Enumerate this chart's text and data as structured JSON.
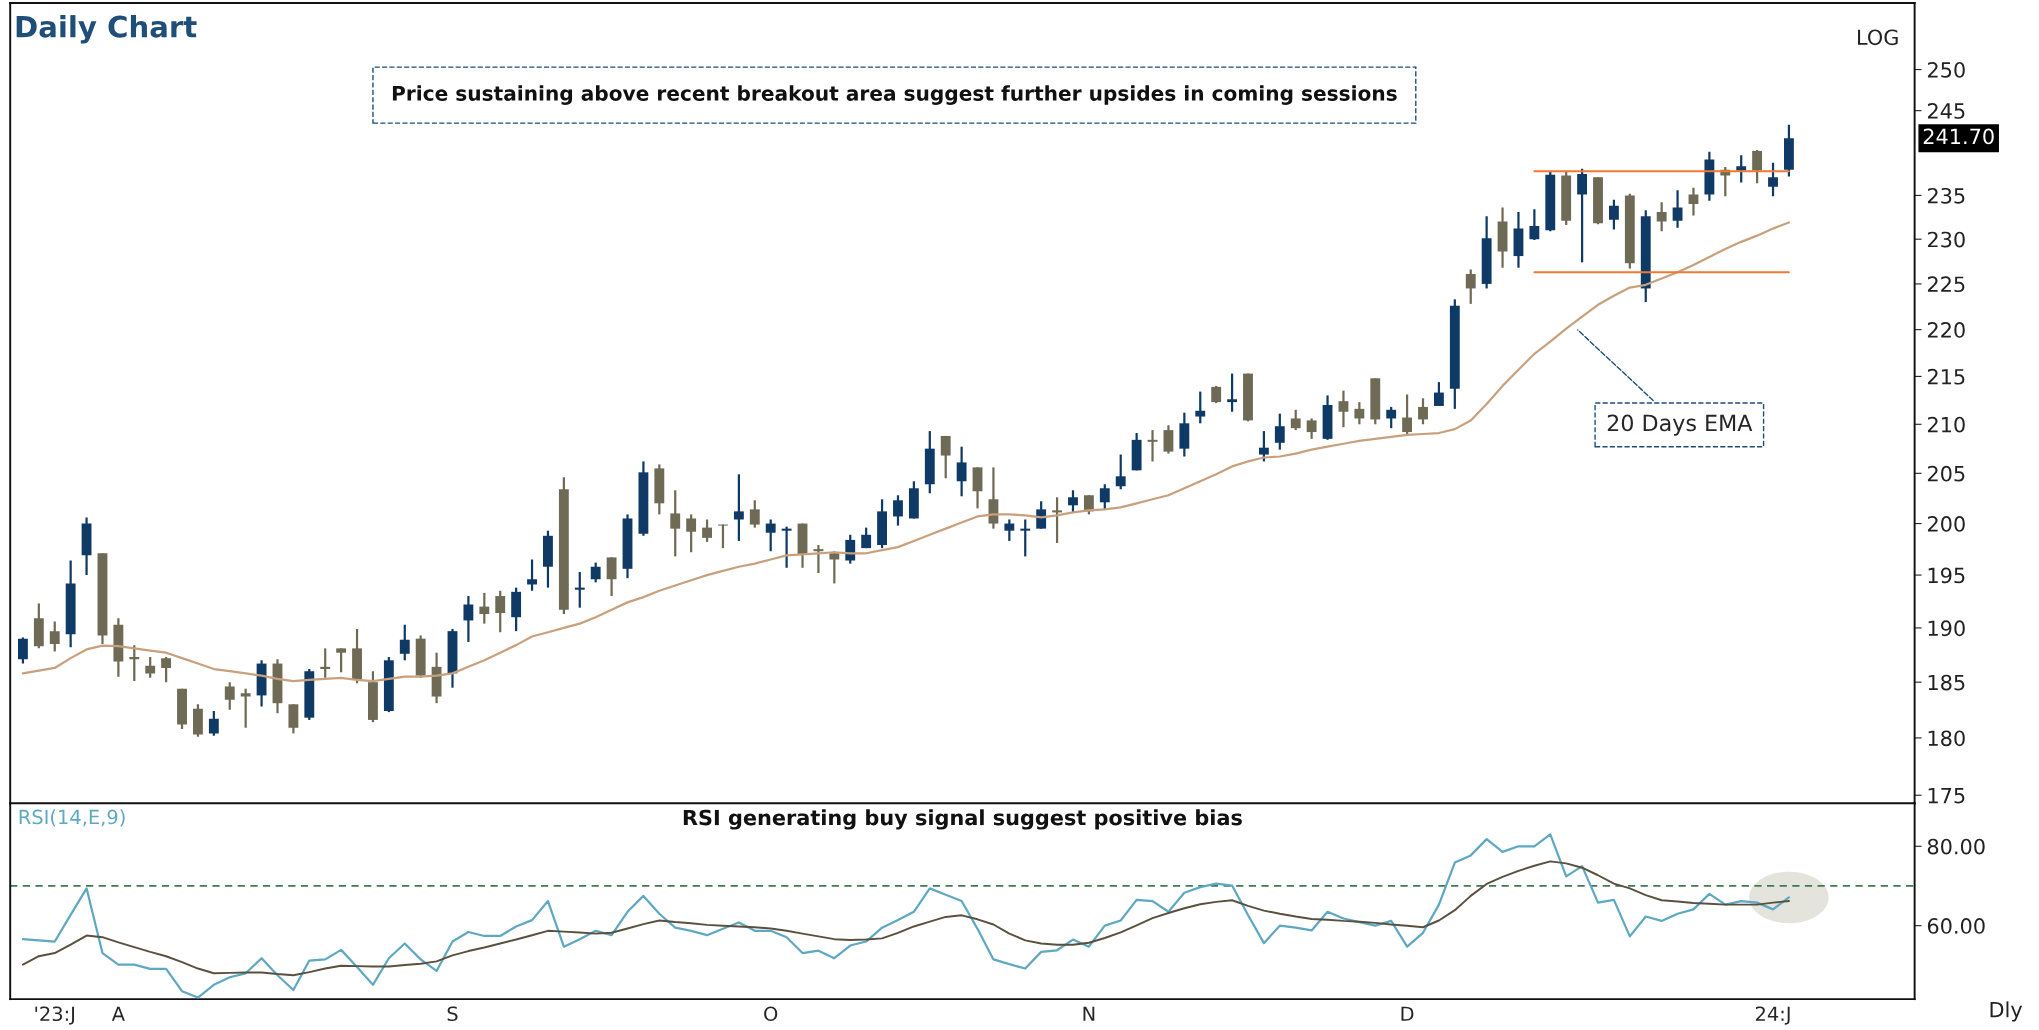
{
  "chart_data": [
    {
      "type": "candlestick",
      "title": "Daily Chart",
      "log": true,
      "tick_labels": "y",
      "categories": [
        null,
        null,
        null,
        null,
        null,
        null,
        null,
        null,
        null,
        null,
        null,
        null,
        null,
        null,
        null,
        null,
        null,
        null,
        null,
        null,
        null,
        null,
        null,
        null,
        null,
        null,
        null,
        null,
        null,
        null,
        null,
        null,
        null,
        null,
        null,
        null,
        null,
        null,
        null,
        null,
        null,
        null,
        null,
        null,
        null,
        null,
        null,
        null,
        null,
        null,
        null,
        null,
        null,
        null,
        null,
        null,
        null,
        null,
        null,
        null,
        null,
        null,
        null,
        null,
        null,
        null,
        null,
        null,
        null,
        null,
        null,
        null,
        null,
        null,
        null,
        null,
        null,
        null,
        null,
        null,
        null,
        null,
        null,
        null,
        null,
        null,
        null,
        null,
        null,
        null,
        null,
        null,
        null,
        null,
        null,
        null,
        null,
        null,
        null,
        null,
        null,
        null,
        null,
        null,
        null,
        null,
        null,
        null,
        null,
        null,
        null,
        null
      ],
      "ylim": [
        174.3,
        258.3
      ],
      "yticks": [
        175,
        180,
        185,
        190,
        195,
        200,
        205,
        210,
        215,
        220,
        225,
        230,
        235,
        245,
        250
      ],
      "ohlc": [
        [
          187.1,
          189.1,
          186.7,
          189.0
        ],
        [
          190.9,
          192.3,
          188.1,
          188.3
        ],
        [
          189.7,
          190.6,
          187.8,
          188.5
        ],
        [
          189.4,
          196.4,
          188.2,
          194.2
        ],
        [
          196.9,
          200.6,
          195.0,
          200.0
        ],
        [
          197.1,
          197.1,
          188.5,
          189.3
        ],
        [
          190.3,
          190.9,
          185.5,
          186.9
        ],
        [
          187.3,
          188.4,
          185.1,
          187.1
        ],
        [
          186.5,
          187.3,
          185.4,
          185.8
        ],
        [
          187.2,
          187.3,
          185.0,
          186.3
        ],
        [
          184.4,
          184.4,
          180.8,
          181.2
        ],
        [
          182.6,
          183.0,
          180.1,
          180.3
        ],
        [
          180.4,
          182.4,
          180.2,
          181.7
        ],
        [
          184.6,
          185.0,
          182.5,
          183.4
        ],
        [
          184.0,
          184.4,
          180.9,
          183.7
        ],
        [
          183.8,
          187.0,
          182.8,
          186.7
        ],
        [
          186.7,
          187.1,
          182.2,
          183.1
        ],
        [
          183.0,
          183.0,
          180.4,
          180.9
        ],
        [
          181.8,
          186.2,
          181.6,
          186.0
        ],
        [
          186.4,
          188.1,
          185.4,
          186.2
        ],
        [
          188.1,
          188.1,
          185.9,
          187.7
        ],
        [
          188.1,
          189.9,
          184.9,
          185.2
        ],
        [
          185.0,
          186.0,
          181.4,
          181.6
        ],
        [
          182.4,
          187.3,
          182.3,
          187.0
        ],
        [
          187.6,
          190.3,
          187.0,
          188.9
        ],
        [
          189.0,
          189.3,
          185.4,
          185.6
        ],
        [
          186.4,
          187.7,
          183.1,
          183.7
        ],
        [
          185.8,
          189.9,
          184.5,
          189.7
        ],
        [
          190.7,
          193.0,
          188.7,
          192.2
        ],
        [
          192.0,
          193.3,
          190.4,
          191.3
        ],
        [
          193.0,
          193.5,
          189.6,
          191.4
        ],
        [
          191.0,
          193.8,
          189.7,
          193.4
        ],
        [
          194.1,
          196.5,
          193.5,
          194.6
        ],
        [
          195.8,
          199.3,
          193.8,
          198.8
        ],
        [
          203.4,
          204.6,
          191.3,
          191.7
        ],
        [
          193.6,
          195.3,
          191.9,
          193.8
        ],
        [
          194.6,
          196.2,
          194.3,
          195.8
        ],
        [
          196.7,
          196.7,
          193.0,
          194.6
        ],
        [
          195.6,
          200.9,
          194.7,
          200.5
        ],
        [
          199.0,
          206.2,
          198.8,
          205.1
        ],
        [
          205.5,
          205.9,
          200.9,
          202.0
        ],
        [
          201.0,
          203.3,
          196.8,
          199.5
        ],
        [
          200.5,
          200.9,
          197.2,
          199.2
        ],
        [
          199.6,
          200.4,
          198.2,
          198.6
        ],
        [
          199.9,
          199.9,
          197.6,
          199.8
        ],
        [
          200.4,
          204.9,
          198.3,
          201.2
        ],
        [
          201.4,
          202.3,
          199.6,
          199.9
        ],
        [
          199.1,
          200.4,
          197.3,
          200.0
        ],
        [
          199.3,
          199.7,
          195.7,
          199.5
        ],
        [
          200.0,
          200.0,
          195.7,
          197.0
        ],
        [
          197.5,
          197.9,
          195.2,
          197.3
        ],
        [
          197.1,
          197.3,
          194.2,
          196.5
        ],
        [
          196.4,
          198.9,
          196.1,
          198.4
        ],
        [
          197.6,
          199.6,
          197.6,
          198.9
        ],
        [
          197.9,
          202.4,
          197.6,
          201.2
        ],
        [
          200.7,
          202.8,
          199.8,
          202.3
        ],
        [
          200.5,
          204.2,
          200.5,
          203.5
        ],
        [
          203.9,
          209.3,
          203.0,
          207.5
        ],
        [
          208.8,
          208.8,
          204.5,
          206.8
        ],
        [
          204.2,
          207.7,
          202.7,
          206.1
        ],
        [
          205.6,
          205.6,
          201.5,
          203.2
        ],
        [
          202.4,
          205.6,
          199.5,
          200.0
        ],
        [
          199.3,
          200.4,
          198.3,
          200.0
        ],
        [
          199.3,
          200.4,
          196.8,
          199.5
        ],
        [
          199.5,
          202.2,
          199.5,
          201.4
        ],
        [
          201.3,
          202.6,
          198.1,
          201.1
        ],
        [
          201.8,
          203.3,
          201.1,
          202.6
        ],
        [
          202.8,
          202.8,
          200.9,
          201.2
        ],
        [
          202.1,
          203.9,
          201.4,
          203.5
        ],
        [
          203.7,
          206.9,
          203.4,
          204.7
        ],
        [
          205.3,
          209.1,
          205.3,
          208.4
        ],
        [
          208.4,
          209.4,
          206.2,
          208.2
        ],
        [
          209.4,
          209.9,
          207.0,
          207.2
        ],
        [
          207.5,
          211.2,
          206.7,
          210.1
        ],
        [
          210.8,
          213.4,
          210.1,
          211.4
        ],
        [
          213.9,
          214.0,
          212.2,
          212.3
        ],
        [
          212.3,
          215.3,
          211.3,
          212.6
        ],
        [
          215.3,
          215.3,
          210.3,
          210.4
        ],
        [
          206.9,
          209.3,
          206.2,
          207.6
        ],
        [
          208.1,
          211.1,
          207.4,
          209.8
        ],
        [
          210.6,
          211.5,
          209.4,
          209.6
        ],
        [
          210.4,
          210.6,
          208.5,
          209.2
        ],
        [
          208.5,
          213.0,
          208.4,
          212.0
        ],
        [
          212.4,
          213.5,
          209.7,
          211.3
        ],
        [
          211.6,
          212.3,
          210.0,
          210.6
        ],
        [
          214.8,
          214.8,
          210.0,
          210.5
        ],
        [
          210.6,
          211.8,
          209.6,
          211.5
        ],
        [
          210.7,
          213.1,
          208.9,
          209.2
        ],
        [
          211.8,
          212.7,
          210.0,
          210.5
        ],
        [
          211.9,
          214.4,
          211.9,
          213.3
        ],
        [
          213.7,
          223.3,
          211.6,
          222.6
        ],
        [
          226.1,
          226.6,
          222.8,
          224.5
        ],
        [
          225.0,
          232.6,
          224.5,
          230.1
        ],
        [
          232.0,
          233.6,
          226.8,
          228.6
        ],
        [
          228.1,
          233.1,
          226.8,
          231.2
        ],
        [
          230.0,
          233.4,
          229.9,
          231.5
        ],
        [
          231.0,
          237.8,
          230.9,
          237.4
        ],
        [
          237.3,
          237.8,
          231.6,
          232.1
        ],
        [
          235.1,
          238.1,
          227.4,
          237.5
        ],
        [
          237.1,
          237.1,
          231.7,
          231.8
        ],
        [
          232.2,
          234.5,
          231.1,
          233.8
        ],
        [
          235.0,
          235.2,
          226.7,
          227.3
        ],
        [
          224.5,
          233.3,
          223.0,
          232.6
        ],
        [
          233.1,
          234.2,
          230.9,
          232.0
        ],
        [
          232.1,
          235.6,
          231.3,
          233.6
        ],
        [
          235.1,
          235.9,
          232.7,
          234.0
        ],
        [
          235.1,
          240.1,
          234.4,
          239.2
        ],
        [
          238.0,
          238.3,
          234.9,
          237.3
        ],
        [
          237.9,
          239.7,
          236.5,
          238.4
        ],
        [
          240.2,
          240.3,
          236.4,
          237.9
        ],
        [
          236.0,
          238.8,
          234.9,
          237.1
        ],
        [
          238.0,
          243.3,
          237.2,
          241.7
        ]
      ],
      "colors": [
        "#0f3a66",
        "#6e6a56",
        "#6e6a56",
        "#0f3a66",
        "#0f3a66",
        "#6e6a56",
        "#6e6a56",
        "#6e6a56",
        "#6e6a56",
        "#6e6a56",
        "#6e6a56",
        "#6e6a56",
        "#0f3a66",
        "#6e6a56",
        "#6e6a56",
        "#0f3a66",
        "#6e6a56",
        "#6e6a56",
        "#0f3a66",
        "#6e6a56",
        "#6e6a56",
        "#6e6a56",
        "#6e6a56",
        "#0f3a66",
        "#0f3a66",
        "#6e6a56",
        "#6e6a56",
        "#0f3a66",
        "#0f3a66",
        "#6e6a56",
        "#6e6a56",
        "#0f3a66",
        "#0f3a66",
        "#0f3a66",
        "#6e6a56",
        "#0f3a66",
        "#0f3a66",
        "#6e6a56",
        "#0f3a66",
        "#0f3a66",
        "#6e6a56",
        "#6e6a56",
        "#6e6a56",
        "#6e6a56",
        "#6e6a56",
        "#0f3a66",
        "#6e6a56",
        "#0f3a66",
        "#0f3a66",
        "#6e6a56",
        "#6e6a56",
        "#6e6a56",
        "#0f3a66",
        "#0f3a66",
        "#0f3a66",
        "#0f3a66",
        "#0f3a66",
        "#0f3a66",
        "#6e6a56",
        "#0f3a66",
        "#6e6a56",
        "#6e6a56",
        "#0f3a66",
        "#0f3a66",
        "#0f3a66",
        "#6e6a56",
        "#0f3a66",
        "#6e6a56",
        "#0f3a66",
        "#0f3a66",
        "#0f3a66",
        "#6e6a56",
        "#6e6a56",
        "#0f3a66",
        "#0f3a66",
        "#6e6a56",
        "#0f3a66",
        "#6e6a56",
        "#0f3a66",
        "#0f3a66",
        "#6e6a56",
        "#6e6a56",
        "#0f3a66",
        "#6e6a56",
        "#6e6a56",
        "#6e6a56",
        "#0f3a66",
        "#6e6a56",
        "#6e6a56",
        "#0f3a66",
        "#0f3a66",
        "#6e6a56",
        "#0f3a66",
        "#6e6a56",
        "#0f3a66",
        "#0f3a66",
        "#0f3a66",
        "#6e6a56",
        "#0f3a66",
        "#6e6a56",
        "#0f3a66",
        "#6e6a56",
        "#0f3a66",
        "#6e6a56",
        "#0f3a66",
        "#6e6a56",
        "#0f3a66",
        "#6e6a56",
        "#0f3a66",
        "#6e6a56",
        "#0f3a66",
        "#0f3a66"
      ],
      "series": [
        {
          "type": "line",
          "color": "#c9a07c",
          "values": [
            185.8,
            186.05,
            186.3,
            187.2,
            188.0,
            188.35,
            188.3,
            188.1,
            187.9,
            187.7,
            187.2,
            186.7,
            186.2,
            186.0,
            185.8,
            185.6,
            185.3,
            185.1,
            185.2,
            185.3,
            185.4,
            185.2,
            185.1,
            185.3,
            185.5,
            185.5,
            185.6,
            185.8,
            186.4,
            187.0,
            187.7,
            188.4,
            189.2,
            189.6,
            190.0,
            190.4,
            191.0,
            191.7,
            192.4,
            192.9,
            193.5,
            194.0,
            194.5,
            195.0,
            195.4,
            195.8,
            196.1,
            196.5,
            196.9,
            197.0,
            197.1,
            197.2,
            197.1,
            197.1,
            197.4,
            197.7,
            198.3,
            198.9,
            199.5,
            200.1,
            200.7,
            200.9,
            200.9,
            200.8,
            200.6,
            200.8,
            201.1,
            201.3,
            201.4,
            201.6,
            202.0,
            202.4,
            202.8,
            203.5,
            204.2,
            204.9,
            205.7,
            206.2,
            206.6,
            206.7,
            207.0,
            207.4,
            207.7,
            208.0,
            208.3,
            208.5,
            208.7,
            208.9,
            209.0,
            209.1,
            209.5,
            210.4,
            212.1,
            214.0,
            215.7,
            217.4,
            218.7,
            220.1,
            221.4,
            222.7,
            223.7,
            224.6,
            224.9,
            225.6,
            226.3,
            227.1,
            228.0,
            228.9,
            229.7,
            230.4,
            231.2,
            231.9
          ]
        },
        {
          "type": "line",
          "color": "#f07a32",
          "values": [
            null,
            null,
            null,
            null,
            null,
            null,
            null,
            null,
            null,
            null,
            null,
            null,
            null,
            null,
            null,
            null,
            null,
            null,
            null,
            null,
            null,
            null,
            null,
            null,
            null,
            null,
            null,
            null,
            null,
            null,
            null,
            null,
            null,
            null,
            null,
            null,
            null,
            null,
            null,
            null,
            null,
            null,
            null,
            null,
            null,
            null,
            null,
            null,
            null,
            null,
            null,
            null,
            null,
            null,
            null,
            null,
            null,
            null,
            null,
            null,
            null,
            null,
            null,
            null,
            null,
            null,
            null,
            null,
            null,
            null,
            null,
            null,
            null,
            null,
            null,
            null,
            null,
            null,
            null,
            null,
            null,
            null,
            null,
            null,
            null,
            null,
            null,
            null,
            null,
            null,
            null,
            null,
            null,
            null,
            null,
            237.8,
            237.8,
            237.8,
            237.8,
            237.8,
            237.8,
            237.8,
            237.8,
            237.8,
            237.8,
            237.8,
            237.8,
            237.8,
            237.8,
            237.8,
            237.8,
            237.8
          ]
        },
        {
          "type": "line",
          "color": "#f07a32",
          "values": [
            null,
            null,
            null,
            null,
            null,
            null,
            null,
            null,
            null,
            null,
            null,
            null,
            null,
            null,
            null,
            null,
            null,
            null,
            null,
            null,
            null,
            null,
            null,
            null,
            null,
            null,
            null,
            null,
            null,
            null,
            null,
            null,
            null,
            null,
            null,
            null,
            null,
            null,
            null,
            null,
            null,
            null,
            null,
            null,
            null,
            null,
            null,
            null,
            null,
            null,
            null,
            null,
            null,
            null,
            null,
            null,
            null,
            null,
            null,
            null,
            null,
            null,
            null,
            null,
            null,
            null,
            null,
            null,
            null,
            null,
            null,
            null,
            null,
            null,
            null,
            null,
            null,
            null,
            null,
            null,
            null,
            null,
            null,
            null,
            null,
            null,
            null,
            null,
            null,
            null,
            null,
            null,
            null,
            null,
            null,
            226.3,
            226.3,
            226.3,
            226.3,
            226.3,
            226.3,
            226.3,
            226.3,
            226.3,
            226.3,
            226.3,
            226.3,
            226.3,
            226.3,
            226.3,
            226.3,
            226.3
          ]
        }
      ],
      "annotations": [
        "LOG",
        "241.70",
        "Price sustaining above recent breakout area suggest further upsides in coming sessions",
        "20 Days EMA"
      ]
    },
    {
      "type": "line",
      "title": "RSI generating buy signal suggest positive bias",
      "categories": [
        null,
        null,
        "'23:J",
        null,
        null,
        null,
        "A",
        null,
        null,
        null,
        null,
        null,
        null,
        null,
        null,
        null,
        null,
        null,
        null,
        null,
        null,
        null,
        null,
        null,
        null,
        null,
        null,
        "S",
        null,
        null,
        null,
        null,
        null,
        null,
        null,
        null,
        null,
        null,
        null,
        null,
        null,
        null,
        null,
        null,
        null,
        null,
        null,
        "O",
        null,
        null,
        null,
        null,
        null,
        null,
        null,
        null,
        null,
        null,
        null,
        null,
        null,
        null,
        null,
        null,
        null,
        null,
        null,
        "N",
        null,
        null,
        null,
        null,
        null,
        null,
        null,
        null,
        null,
        null,
        null,
        null,
        null,
        null,
        null,
        null,
        null,
        null,
        null,
        "D",
        null,
        null,
        null,
        null,
        null,
        null,
        null,
        null,
        null,
        null,
        null,
        null,
        null,
        null,
        null,
        null,
        null,
        null,
        null,
        null,
        null,
        null,
        "24:J",
        null
      ],
      "ylim": [
        41.5,
        90.8
      ],
      "yticks": [
        {
          "value": 60,
          "label": "60.00"
        },
        {
          "value": 80,
          "label": "80.00"
        }
      ],
      "ref_lines": [
        {
          "axis": "y",
          "value": 70,
          "color": "#3f7a50",
          "line_style": "dashed"
        }
      ],
      "series": [
        {
          "name": "RSI(14,E,9)",
          "color": "#5ea8c2",
          "values": [
            56.6,
            56.3,
            56.0,
            62.7,
            69.4,
            53.1,
            50.2,
            50.2,
            49.1,
            49.1,
            43.5,
            41.9,
            45.1,
            47.0,
            48.0,
            51.8,
            47.5,
            43.8,
            51.2,
            51.5,
            53.9,
            49.6,
            45.1,
            51.8,
            55.5,
            51.5,
            48.6,
            56.0,
            58.4,
            57.4,
            57.4,
            59.8,
            61.4,
            66.2,
            54.7,
            56.6,
            58.7,
            57.6,
            63.5,
            67.5,
            63.0,
            59.5,
            58.7,
            57.6,
            59.2,
            60.8,
            58.7,
            58.7,
            57.1,
            53.1,
            53.7,
            51.8,
            55.0,
            56.0,
            59.5,
            61.4,
            63.5,
            69.4,
            67.8,
            66.2,
            59.2,
            51.5,
            50.3,
            49.2,
            53.4,
            53.8,
            56.5,
            54.7,
            60.0,
            61.3,
            66.5,
            66.2,
            63.5,
            68.3,
            69.7,
            70.6,
            70.1,
            62.7,
            55.6,
            60.0,
            59.5,
            58.8,
            63.5,
            61.8,
            60.9,
            60.0,
            61.2,
            54.7,
            58.2,
            65.3,
            75.9,
            77.7,
            81.8,
            78.6,
            80.0,
            80.0,
            83.0,
            72.4,
            75.0,
            65.8,
            66.5,
            57.3,
            62.3,
            61.2,
            63.0,
            64.1,
            68.0,
            65.3,
            66.2,
            65.8,
            64.1,
            67.1
          ]
        },
        {
          "color": "#5a5040",
          "values": [
            50.2,
            52.3,
            53.1,
            55.2,
            57.5,
            57.1,
            55.8,
            54.6,
            53.4,
            52.3,
            50.8,
            49.2,
            48.0,
            48.1,
            48.2,
            48.2,
            47.8,
            47.5,
            48.3,
            49.2,
            49.9,
            49.8,
            49.7,
            49.7,
            50.1,
            50.4,
            51.0,
            52.5,
            53.6,
            54.5,
            55.5,
            56.5,
            57.6,
            58.7,
            58.5,
            58.3,
            58.0,
            58.2,
            59.3,
            60.4,
            61.3,
            60.9,
            60.6,
            60.2,
            60.0,
            59.8,
            59.6,
            59.3,
            58.7,
            58.0,
            57.3,
            56.6,
            56.4,
            56.5,
            56.8,
            58.2,
            59.8,
            61.0,
            62.2,
            62.6,
            61.6,
            60.3,
            58.0,
            56.3,
            55.5,
            55.2,
            55.2,
            55.7,
            56.9,
            58.3,
            60.1,
            61.9,
            63.2,
            64.4,
            65.4,
            66.0,
            66.4,
            65.0,
            63.8,
            63.0,
            62.3,
            61.7,
            61.5,
            61.2,
            61.0,
            60.7,
            60.3,
            60.0,
            59.6,
            61.3,
            63.9,
            67.5,
            70.5,
            72.3,
            73.8,
            75.1,
            76.2,
            75.7,
            74.6,
            72.7,
            70.6,
            69.4,
            67.7,
            66.4,
            66.1,
            65.7,
            65.5,
            65.3,
            65.3,
            65.3,
            65.8,
            66.2
          ]
        }
      ],
      "annotations": [
        "Dly"
      ]
    }
  ]
}
